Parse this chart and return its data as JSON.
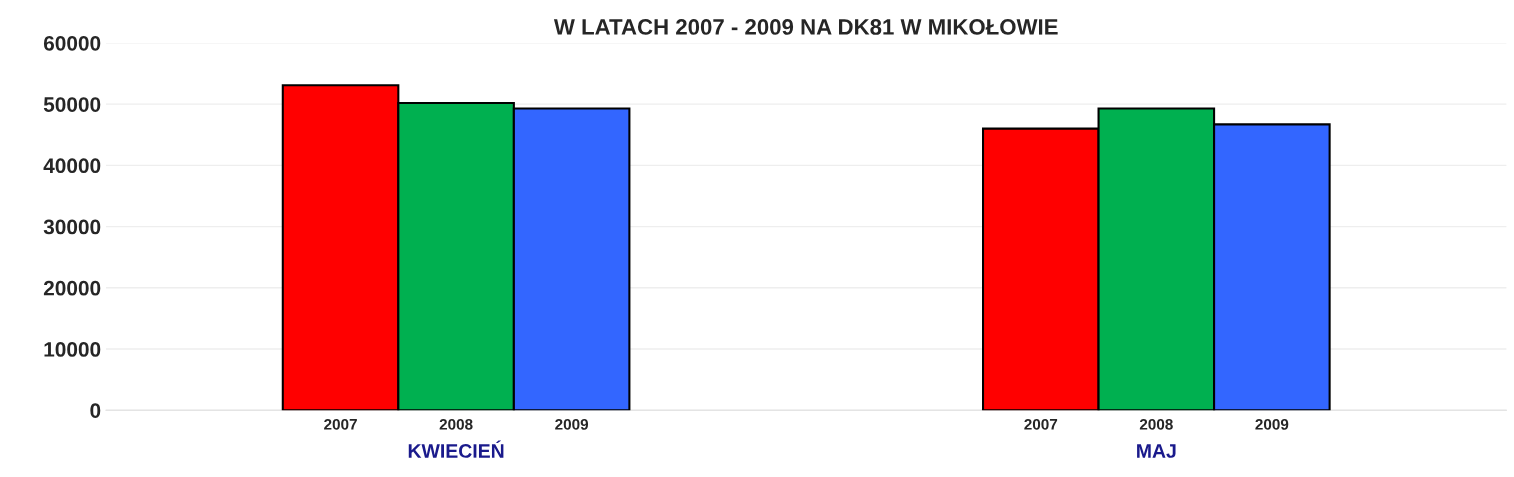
{
  "chart_data": {
    "type": "bar",
    "title": "W LATACH 2007 - 2009 NA DK81 W MIKOŁOWIE",
    "categories": [
      "KWIECIEŃ",
      "MAJ"
    ],
    "series": [
      {
        "name": "2007",
        "color": "#ff0000",
        "values": [
          53100,
          46000
        ]
      },
      {
        "name": "2008",
        "color": "#00b050",
        "values": [
          50200,
          49300
        ]
      },
      {
        "name": "2009",
        "color": "#3366ff",
        "values": [
          49300,
          46700
        ]
      }
    ],
    "ylim": [
      0,
      60000
    ],
    "yticks": [
      0,
      10000,
      20000,
      30000,
      40000,
      50000,
      60000
    ],
    "grid": "y",
    "legend": false
  }
}
